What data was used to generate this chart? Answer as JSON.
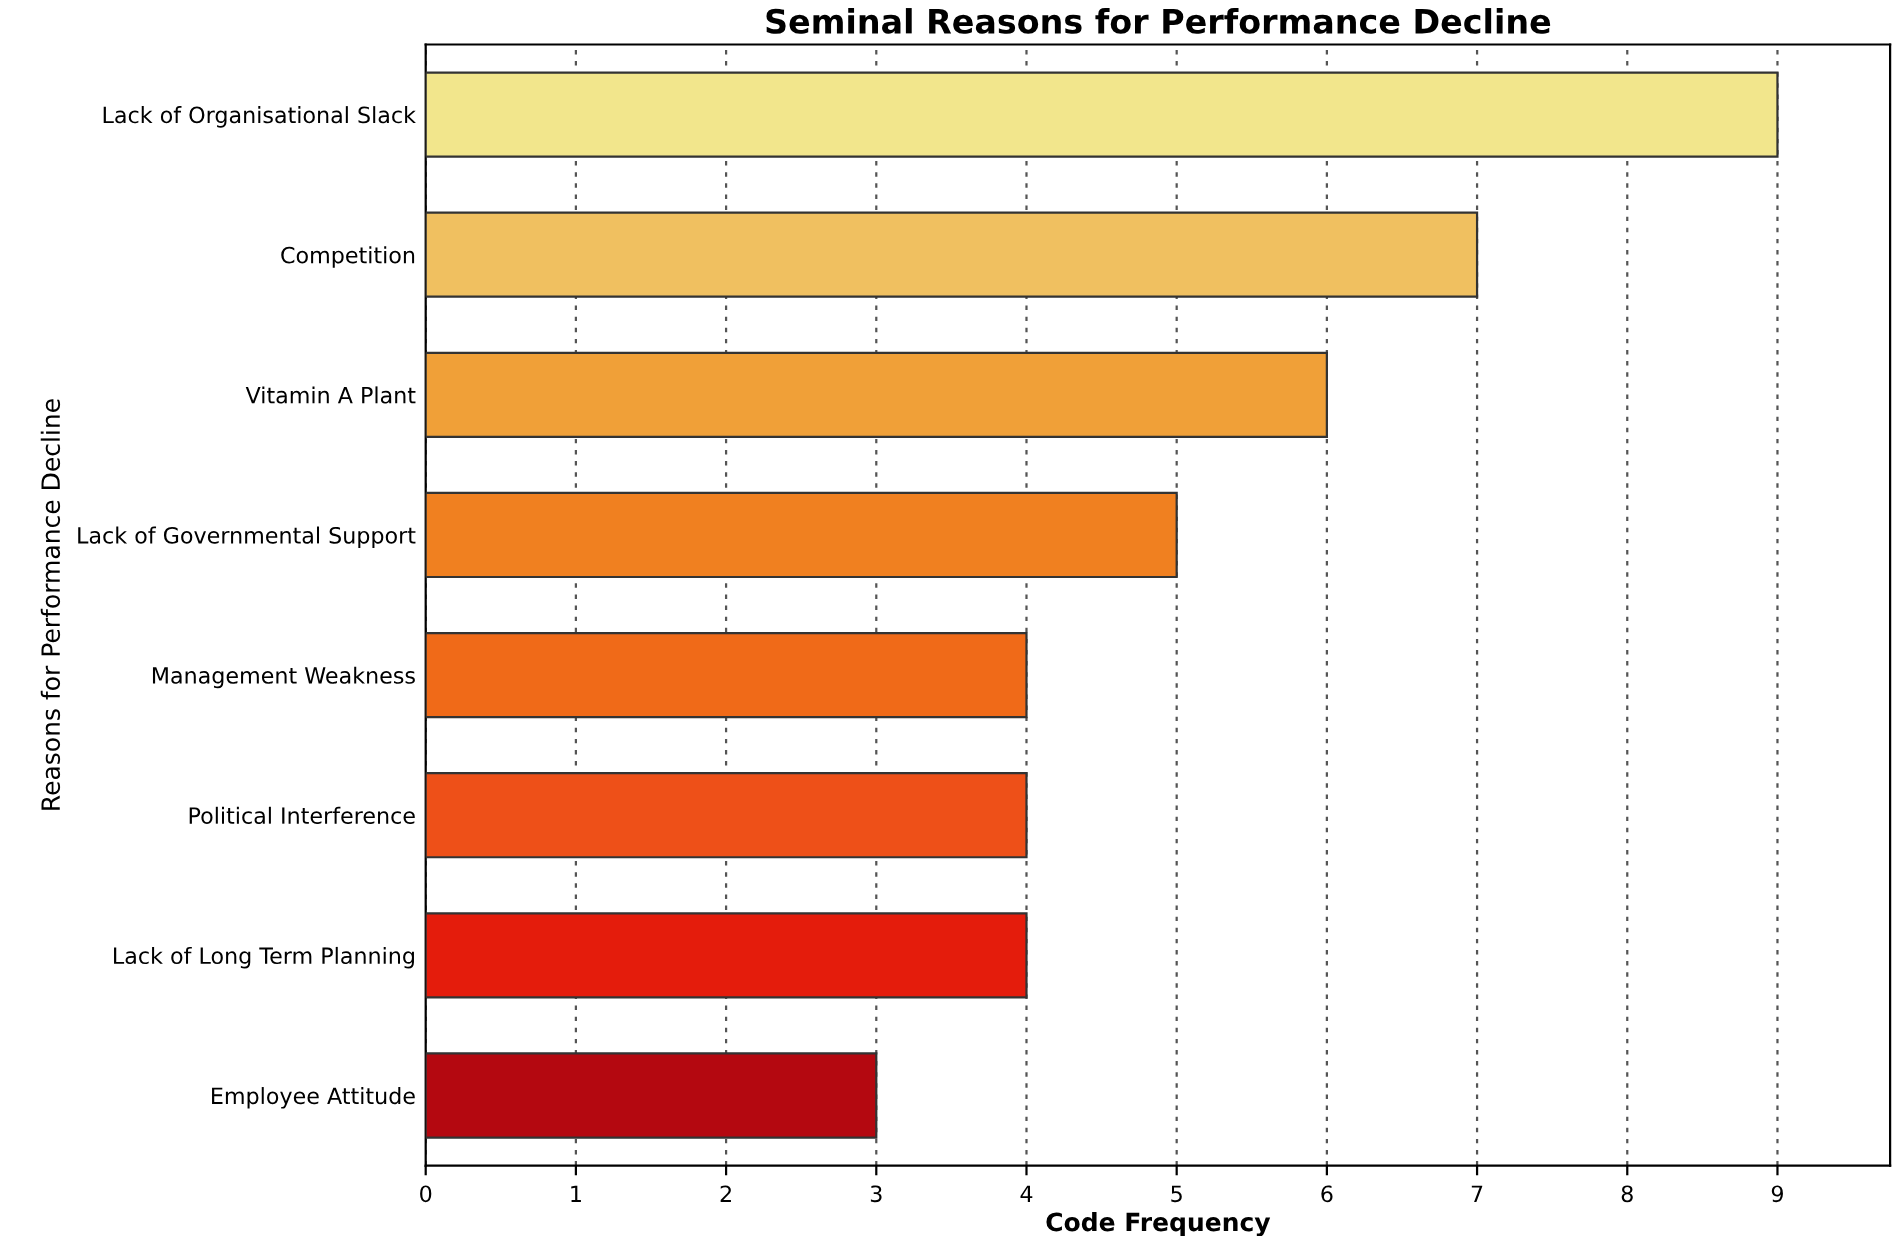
{
  "chart_data": {
    "type": "bar",
    "orientation": "horizontal",
    "title": "Seminal Reasons for Performance Decline",
    "xlabel": "Code Frequency",
    "ylabel": "Reasons for Performance Decline",
    "categories": [
      "Lack of Organisational Slack",
      "Competition",
      "Vitamin A Plant",
      "Lack of Governmental Support",
      "Management Weakness",
      "Political Interference",
      "Lack of Long Term Planning",
      "Employee Attitude"
    ],
    "values": [
      9,
      7,
      6,
      5,
      4,
      4,
      4,
      3
    ],
    "colors": [
      "#f2e68c",
      "#f0c060",
      "#f0a038",
      "#f08020",
      "#f06a18",
      "#ee5018",
      "#e41c0c",
      "#b40810"
    ],
    "xlim": [
      0,
      9.75
    ],
    "xticks": [
      0,
      1,
      2,
      3,
      4,
      5,
      6,
      7,
      8,
      9
    ],
    "grid": "x"
  }
}
